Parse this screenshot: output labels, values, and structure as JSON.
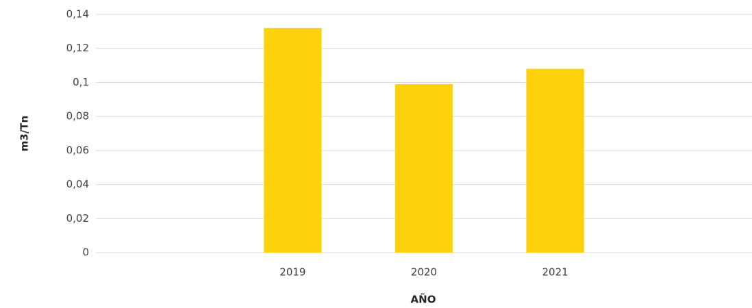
{
  "chart_data": {
    "type": "bar",
    "x_label": "AÑO",
    "y_label": "m3/Tn",
    "categories": [
      null,
      "2019",
      "2020",
      "2021",
      null
    ],
    "values": [
      null,
      0.132,
      0.099,
      0.108,
      null
    ],
    "color": "#fdd20d",
    "ylim": [
      0,
      0.14
    ],
    "yticks": [
      0,
      {
        "value": 0.02,
        "label": "0,02"
      },
      {
        "value": 0.04,
        "label": "0,04"
      },
      {
        "value": 0.06,
        "label": "0,06"
      },
      {
        "value": 0.08,
        "label": "0,08"
      },
      {
        "value": 0.1,
        "label": "0,1"
      },
      {
        "value": 0.12,
        "label": "0,12"
      },
      {
        "value": 0.14,
        "label": "0,14"
      }
    ],
    "grid": true
  }
}
